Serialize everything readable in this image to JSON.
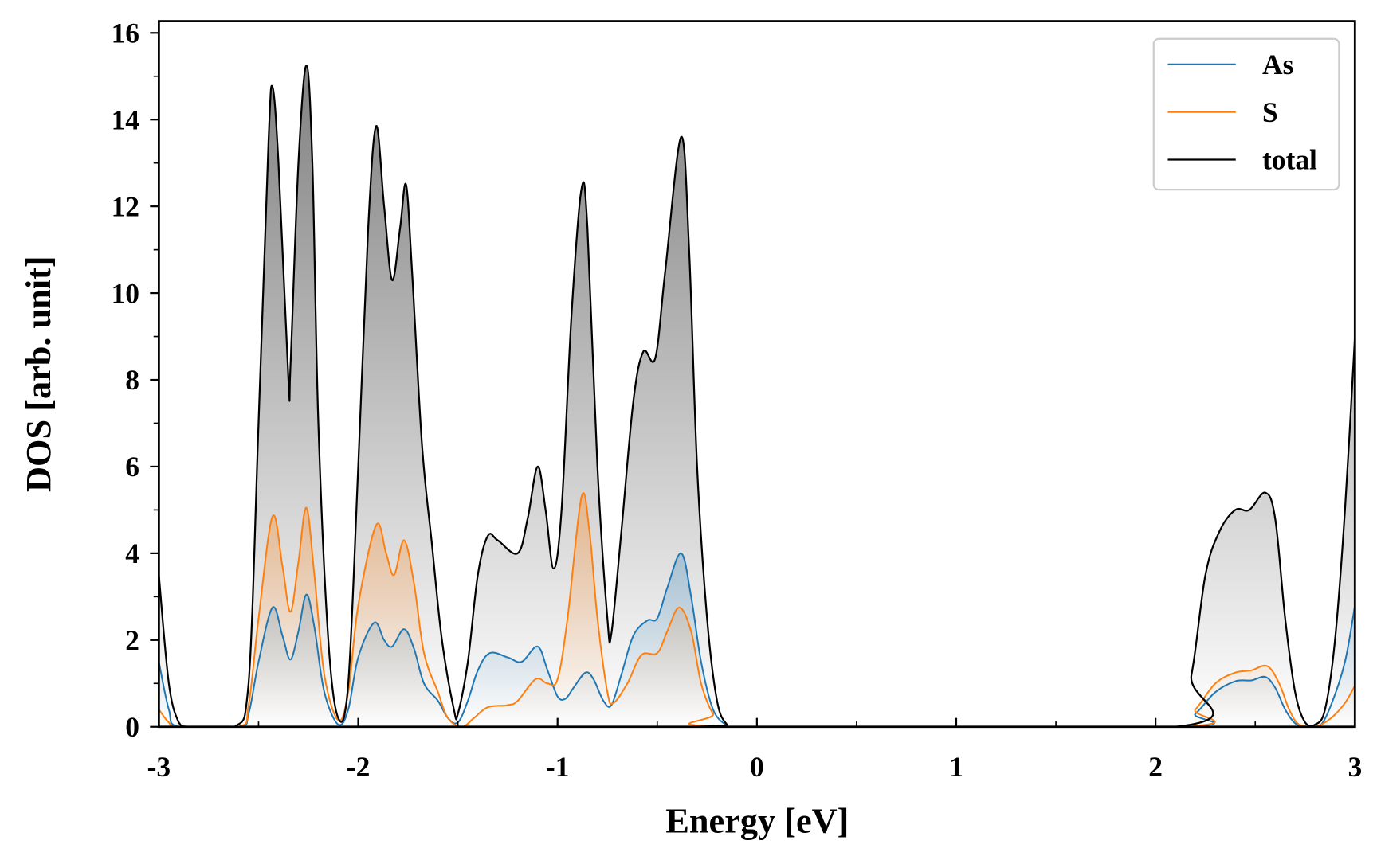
{
  "chart_data": {
    "type": "line",
    "title": "",
    "xlabel": "Energy [eV]",
    "ylabel": "DOS [arb. unit]",
    "xlim": [
      -3,
      3
    ],
    "ylim": [
      0,
      16.27
    ],
    "xticks": [
      -3,
      -2,
      -1,
      0,
      1,
      2,
      3
    ],
    "xtick_labels": [
      "-3",
      "-2",
      "-1",
      "0",
      "1",
      "2",
      "3"
    ],
    "yticks": [
      0,
      2,
      4,
      6,
      8,
      10,
      12,
      14,
      16
    ],
    "ytick_labels": [
      "0",
      "2",
      "4",
      "6",
      "8",
      "10",
      "12",
      "14",
      "16"
    ],
    "grid": false,
    "legend_position": "top-right",
    "series": [
      {
        "name": "As",
        "color": "#1f77b4",
        "points": [
          [
            -3,
            1.5
          ],
          [
            -2.95,
            0.4
          ],
          [
            -2.9,
            0
          ],
          [
            -2.6,
            0
          ],
          [
            -2.55,
            0.3
          ],
          [
            -2.5,
            1.5
          ],
          [
            -2.43,
            2.75
          ],
          [
            -2.38,
            2.1
          ],
          [
            -2.34,
            1.55
          ],
          [
            -2.3,
            2.2
          ],
          [
            -2.26,
            3.05
          ],
          [
            -2.22,
            2.3
          ],
          [
            -2.17,
            0.8
          ],
          [
            -2.1,
            0.05
          ],
          [
            -2.05,
            0.4
          ],
          [
            -2.0,
            1.6
          ],
          [
            -1.92,
            2.4
          ],
          [
            -1.87,
            2.0
          ],
          [
            -1.83,
            1.85
          ],
          [
            -1.77,
            2.25
          ],
          [
            -1.72,
            1.8
          ],
          [
            -1.67,
            1.0
          ],
          [
            -1.6,
            0.6
          ],
          [
            -1.55,
            0.2
          ],
          [
            -1.5,
            0.1
          ],
          [
            -1.45,
            0.6
          ],
          [
            -1.4,
            1.3
          ],
          [
            -1.34,
            1.7
          ],
          [
            -1.25,
            1.6
          ],
          [
            -1.18,
            1.5
          ],
          [
            -1.1,
            1.85
          ],
          [
            -1.05,
            1.3
          ],
          [
            -1.0,
            0.7
          ],
          [
            -0.96,
            0.65
          ],
          [
            -0.92,
            0.9
          ],
          [
            -0.86,
            1.25
          ],
          [
            -0.82,
            1.1
          ],
          [
            -0.77,
            0.6
          ],
          [
            -0.73,
            0.5
          ],
          [
            -0.68,
            1.2
          ],
          [
            -0.62,
            2.1
          ],
          [
            -0.55,
            2.45
          ],
          [
            -0.5,
            2.5
          ],
          [
            -0.45,
            3.2
          ],
          [
            -0.38,
            4.0
          ],
          [
            -0.33,
            3.0
          ],
          [
            -0.28,
            1.5
          ],
          [
            -0.22,
            0.4
          ],
          [
            -0.15,
            0.03
          ],
          [
            -0.1,
            0
          ],
          [
            2.1,
            0
          ],
          [
            2.2,
            0.3
          ],
          [
            2.3,
            0.8
          ],
          [
            2.4,
            1.05
          ],
          [
            2.48,
            1.07
          ],
          [
            2.55,
            1.15
          ],
          [
            2.6,
            0.9
          ],
          [
            2.65,
            0.4
          ],
          [
            2.7,
            0.08
          ],
          [
            2.75,
            0
          ],
          [
            2.82,
            0
          ],
          [
            2.88,
            0.5
          ],
          [
            2.95,
            1.5
          ],
          [
            3,
            2.8
          ]
        ]
      },
      {
        "name": "S",
        "color": "#ff7f0e",
        "points": [
          [
            -3,
            0.4
          ],
          [
            -2.95,
            0.1
          ],
          [
            -2.9,
            0
          ],
          [
            -2.6,
            0
          ],
          [
            -2.55,
            0.5
          ],
          [
            -2.5,
            2.5
          ],
          [
            -2.43,
            4.85
          ],
          [
            -2.38,
            3.7
          ],
          [
            -2.34,
            2.65
          ],
          [
            -2.3,
            3.8
          ],
          [
            -2.26,
            5.05
          ],
          [
            -2.22,
            3.5
          ],
          [
            -2.17,
            1.2
          ],
          [
            -2.1,
            0.15
          ],
          [
            -2.05,
            0.8
          ],
          [
            -2.0,
            2.8
          ],
          [
            -1.91,
            4.65
          ],
          [
            -1.86,
            4.0
          ],
          [
            -1.82,
            3.5
          ],
          [
            -1.77,
            4.3
          ],
          [
            -1.72,
            3.3
          ],
          [
            -1.67,
            1.7
          ],
          [
            -1.6,
            0.8
          ],
          [
            -1.55,
            0.2
          ],
          [
            -1.48,
            0
          ],
          [
            -1.42,
            0.2
          ],
          [
            -1.35,
            0.45
          ],
          [
            -1.25,
            0.5
          ],
          [
            -1.2,
            0.6
          ],
          [
            -1.11,
            1.1
          ],
          [
            -1.05,
            1.0
          ],
          [
            -1.0,
            1.1
          ],
          [
            -0.95,
            2.5
          ],
          [
            -0.88,
            5.3
          ],
          [
            -0.84,
            4.5
          ],
          [
            -0.8,
            2.5
          ],
          [
            -0.75,
            0.8
          ],
          [
            -0.72,
            0.55
          ],
          [
            -0.65,
            1.0
          ],
          [
            -0.58,
            1.65
          ],
          [
            -0.5,
            1.7
          ],
          [
            -0.45,
            2.2
          ],
          [
            -0.39,
            2.75
          ],
          [
            -0.33,
            2.2
          ],
          [
            -0.28,
            1.0
          ],
          [
            -0.22,
            0.3
          ],
          [
            -0.15,
            0
          ],
          [
            2.1,
            0
          ],
          [
            2.2,
            0.4
          ],
          [
            2.3,
            1.0
          ],
          [
            2.4,
            1.25
          ],
          [
            2.48,
            1.3
          ],
          [
            2.56,
            1.4
          ],
          [
            2.62,
            1.0
          ],
          [
            2.67,
            0.4
          ],
          [
            2.72,
            0.05
          ],
          [
            2.8,
            0
          ],
          [
            2.88,
            0.2
          ],
          [
            2.95,
            0.55
          ],
          [
            3,
            0.95
          ]
        ]
      },
      {
        "name": "total",
        "color": "#000000",
        "points": [
          [
            -3,
            3.5
          ],
          [
            -2.95,
            1.0
          ],
          [
            -2.9,
            0.1
          ],
          [
            -2.85,
            0
          ],
          [
            -2.62,
            0
          ],
          [
            -2.55,
            1
          ],
          [
            -2.5,
            7
          ],
          [
            -2.45,
            13.5
          ],
          [
            -2.43,
            14.75
          ],
          [
            -2.4,
            13
          ],
          [
            -2.35,
            8
          ],
          [
            -2.34,
            8.3
          ],
          [
            -2.3,
            13
          ],
          [
            -2.26,
            15.25
          ],
          [
            -2.23,
            13
          ],
          [
            -2.2,
            7
          ],
          [
            -2.15,
            2
          ],
          [
            -2.1,
            0.2
          ],
          [
            -2.05,
            1
          ],
          [
            -2.0,
            6
          ],
          [
            -1.95,
            11.5
          ],
          [
            -1.91,
            13.85
          ],
          [
            -1.87,
            12
          ],
          [
            -1.83,
            10.3
          ],
          [
            -1.79,
            11.5
          ],
          [
            -1.76,
            12.5
          ],
          [
            -1.73,
            10.5
          ],
          [
            -1.68,
            6.5
          ],
          [
            -1.63,
            4.2
          ],
          [
            -1.58,
            2
          ],
          [
            -1.52,
            0.4
          ],
          [
            -1.5,
            0.3
          ],
          [
            -1.45,
            1.5
          ],
          [
            -1.4,
            3.5
          ],
          [
            -1.35,
            4.4
          ],
          [
            -1.3,
            4.3
          ],
          [
            -1.2,
            4.0
          ],
          [
            -1.15,
            4.8
          ],
          [
            -1.1,
            6.0
          ],
          [
            -1.06,
            5
          ],
          [
            -1.02,
            3.65
          ],
          [
            -0.98,
            5
          ],
          [
            -0.93,
            9.5
          ],
          [
            -0.88,
            12.4
          ],
          [
            -0.85,
            11.5
          ],
          [
            -0.8,
            6
          ],
          [
            -0.75,
            2.5
          ],
          [
            -0.73,
            2.15
          ],
          [
            -0.68,
            4.5
          ],
          [
            -0.62,
            7.5
          ],
          [
            -0.57,
            8.65
          ],
          [
            -0.51,
            8.5
          ],
          [
            -0.46,
            10.5
          ],
          [
            -0.38,
            13.6
          ],
          [
            -0.34,
            11
          ],
          [
            -0.3,
            6
          ],
          [
            -0.25,
            2.5
          ],
          [
            -0.2,
            0.6
          ],
          [
            -0.15,
            0.05
          ],
          [
            -0.1,
            0
          ],
          [
            2.1,
            0
          ],
          [
            2.18,
            1.2
          ],
          [
            2.25,
            3.5
          ],
          [
            2.32,
            4.5
          ],
          [
            2.4,
            5.0
          ],
          [
            2.47,
            5.0
          ],
          [
            2.55,
            5.4
          ],
          [
            2.6,
            4.8
          ],
          [
            2.65,
            2.5
          ],
          [
            2.7,
            0.8
          ],
          [
            2.75,
            0.1
          ],
          [
            2.8,
            0.05
          ],
          [
            2.85,
            0.4
          ],
          [
            2.9,
            2
          ],
          [
            2.95,
            5
          ],
          [
            3.0,
            9
          ]
        ]
      }
    ]
  }
}
